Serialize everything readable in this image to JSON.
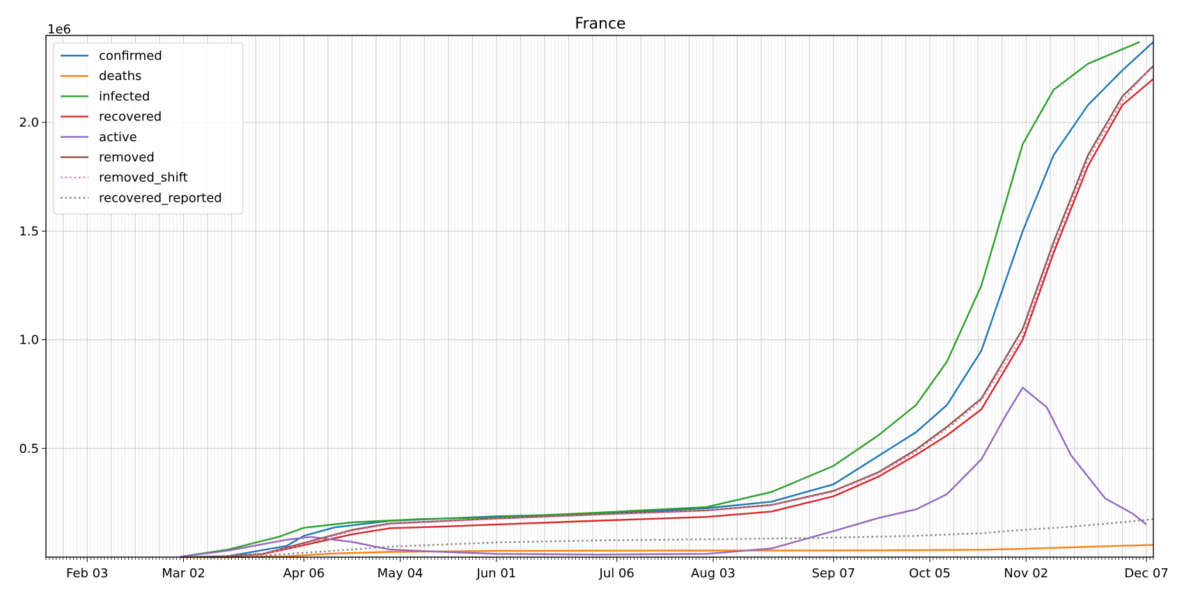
{
  "chart_data": {
    "type": "line",
    "title": "France",
    "xlabel": "",
    "ylabel": "",
    "y_offset_label": "1e6",
    "x_range": [
      "2020-01-22",
      "2020-12-09"
    ],
    "ylim": [
      0,
      2400000
    ],
    "y_ticks": [
      500000,
      1000000,
      1500000,
      2000000
    ],
    "y_tick_labels": [
      "0.5",
      "1.0",
      "1.5",
      "2.0"
    ],
    "x_ticks": [
      "2020-02-03",
      "2020-03-02",
      "2020-04-06",
      "2020-05-04",
      "2020-06-01",
      "2020-07-06",
      "2020-08-03",
      "2020-09-07",
      "2020-10-05",
      "2020-11-02",
      "2020-12-07"
    ],
    "x_tick_labels": [
      "Feb 03",
      "Mar 02",
      "Apr 06",
      "May 04",
      "Jun 01",
      "Jul 06",
      "Aug 03",
      "Sep 07",
      "Oct 05",
      "Nov 02",
      "Dec 07"
    ],
    "grid": true,
    "legend_position": "top-left",
    "series": [
      {
        "name": "confirmed",
        "color": "#1f77b4",
        "style": "solid",
        "x": [
          "2020-03-01",
          "2020-03-15",
          "2020-04-01",
          "2020-04-06",
          "2020-04-15",
          "2020-05-01",
          "2020-06-01",
          "2020-07-01",
          "2020-08-01",
          "2020-08-20",
          "2020-09-07",
          "2020-09-20",
          "2020-10-01",
          "2020-10-10",
          "2020-10-20",
          "2020-11-01",
          "2020-11-10",
          "2020-11-20",
          "2020-11-30",
          "2020-12-09"
        ],
        "y": [
          130,
          4500,
          52000,
          98000,
          137000,
          167000,
          188000,
          200000,
          225000,
          255000,
          335000,
          465000,
          575000,
          700000,
          950000,
          1500000,
          1850000,
          2080000,
          2240000,
          2370000
        ]
      },
      {
        "name": "deaths",
        "color": "#ff7f0e",
        "style": "solid",
        "x": [
          "2020-03-01",
          "2020-03-15",
          "2020-04-01",
          "2020-04-15",
          "2020-05-01",
          "2020-06-01",
          "2020-07-01",
          "2020-08-01",
          "2020-09-01",
          "2020-10-01",
          "2020-10-20",
          "2020-11-01",
          "2020-11-15",
          "2020-12-01",
          "2020-12-09"
        ],
        "y": [
          2,
          91,
          4000,
          17000,
          24000,
          28800,
          29800,
          30300,
          30700,
          32000,
          34000,
          38000,
          45000,
          53000,
          56000
        ]
      },
      {
        "name": "infected",
        "color": "#2ca02c",
        "style": "solid",
        "x": [
          "2020-03-01",
          "2020-03-15",
          "2020-03-30",
          "2020-04-06",
          "2020-04-20",
          "2020-05-10",
          "2020-06-01",
          "2020-07-01",
          "2020-08-01",
          "2020-08-20",
          "2020-09-07",
          "2020-09-20",
          "2020-10-01",
          "2020-10-10",
          "2020-10-20",
          "2020-11-01",
          "2020-11-10",
          "2020-11-20",
          "2020-12-05"
        ],
        "y": [
          1500,
          35000,
          95000,
          135000,
          160000,
          175000,
          183000,
          205000,
          230000,
          300000,
          420000,
          560000,
          700000,
          900000,
          1250000,
          1900000,
          2150000,
          2270000,
          2370000
        ]
      },
      {
        "name": "recovered",
        "color": "#d62728",
        "style": "solid",
        "x": [
          "2020-03-10",
          "2020-03-25",
          "2020-04-06",
          "2020-04-20",
          "2020-05-01",
          "2020-05-15",
          "2020-06-01",
          "2020-07-01",
          "2020-08-01",
          "2020-08-20",
          "2020-09-07",
          "2020-09-20",
          "2020-10-01",
          "2020-10-10",
          "2020-10-20",
          "2020-11-01",
          "2020-11-10",
          "2020-11-20",
          "2020-11-30",
          "2020-12-09"
        ],
        "y": [
          0,
          14000,
          55000,
          105000,
          133000,
          140000,
          150000,
          168000,
          185000,
          210000,
          280000,
          370000,
          470000,
          560000,
          680000,
          1000000,
          1400000,
          1800000,
          2080000,
          2200000
        ]
      },
      {
        "name": "active",
        "color": "#9467bd",
        "style": "solid",
        "x": [
          "2020-03-01",
          "2020-03-15",
          "2020-04-01",
          "2020-04-08",
          "2020-04-20",
          "2020-05-01",
          "2020-05-15",
          "2020-06-01",
          "2020-07-01",
          "2020-08-01",
          "2020-08-20",
          "2020-09-07",
          "2020-09-20",
          "2020-10-01",
          "2020-10-10",
          "2020-10-20",
          "2020-10-27",
          "2020-11-01",
          "2020-11-08",
          "2020-11-15",
          "2020-11-25",
          "2020-12-03",
          "2020-12-07"
        ],
        "y": [
          2000,
          30000,
          80000,
          93000,
          70000,
          35000,
          25000,
          15000,
          12000,
          15000,
          40000,
          120000,
          180000,
          220000,
          290000,
          450000,
          650000,
          780000,
          690000,
          470000,
          270000,
          200000,
          150000
        ]
      },
      {
        "name": "removed",
        "color": "#8c564b",
        "style": "solid",
        "x": [
          "2020-03-10",
          "2020-03-25",
          "2020-04-06",
          "2020-04-20",
          "2020-05-01",
          "2020-05-15",
          "2020-06-01",
          "2020-07-01",
          "2020-08-01",
          "2020-08-20",
          "2020-09-07",
          "2020-09-20",
          "2020-10-01",
          "2020-10-10",
          "2020-10-20",
          "2020-11-01",
          "2020-11-10",
          "2020-11-20",
          "2020-11-30",
          "2020-12-09"
        ],
        "y": [
          0,
          15000,
          65000,
          125000,
          155000,
          165000,
          178000,
          197000,
          215000,
          240000,
          305000,
          390000,
          495000,
          600000,
          730000,
          1050000,
          1450000,
          1850000,
          2120000,
          2260000
        ]
      },
      {
        "name": "removed_shift",
        "color": "#e377c2",
        "style": "dotted",
        "x": [
          "2020-03-10",
          "2020-03-25",
          "2020-04-06",
          "2020-04-20",
          "2020-05-01",
          "2020-05-15",
          "2020-06-01",
          "2020-07-01",
          "2020-08-01",
          "2020-08-20",
          "2020-09-07",
          "2020-09-20",
          "2020-10-01",
          "2020-10-10",
          "2020-10-20",
          "2020-11-01",
          "2020-11-10",
          "2020-11-20",
          "2020-11-30",
          "2020-12-07"
        ],
        "y": [
          0,
          14000,
          60000,
          120000,
          152000,
          163000,
          176000,
          195000,
          213000,
          238000,
          300000,
          385000,
          485000,
          590000,
          720000,
          1020000,
          1420000,
          1830000,
          2100000,
          2230000
        ]
      },
      {
        "name": "recovered_reported",
        "color": "#7f7f7f",
        "style": "dotted",
        "x": [
          "2020-03-10",
          "2020-03-25",
          "2020-04-06",
          "2020-04-20",
          "2020-05-01",
          "2020-06-01",
          "2020-07-01",
          "2020-08-01",
          "2020-09-01",
          "2020-10-01",
          "2020-10-20",
          "2020-11-01",
          "2020-11-15",
          "2020-12-01",
          "2020-12-09"
        ],
        "y": [
          0,
          7000,
          20000,
          35000,
          48000,
          68000,
          77000,
          82000,
          88000,
          98000,
          110000,
          125000,
          140000,
          162000,
          175000
        ]
      }
    ]
  }
}
